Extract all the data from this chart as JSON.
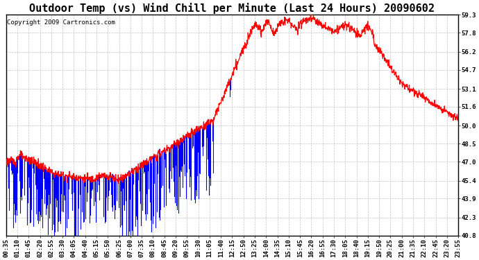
{
  "title": "Outdoor Temp (vs) Wind Chill per Minute (Last 24 Hours) 20090602",
  "copyright": "Copyright 2009 Cartronics.com",
  "y_min": 40.8,
  "y_max": 59.3,
  "y_ticks": [
    40.8,
    42.3,
    43.9,
    45.4,
    47.0,
    48.5,
    50.0,
    51.6,
    53.1,
    54.7,
    56.2,
    57.8,
    59.3
  ],
  "x_labels": [
    "00:35",
    "01:10",
    "01:45",
    "02:20",
    "02:55",
    "03:30",
    "04:05",
    "04:40",
    "05:15",
    "05:50",
    "06:25",
    "07:00",
    "07:35",
    "08:10",
    "08:45",
    "09:20",
    "09:55",
    "10:30",
    "11:05",
    "11:40",
    "12:15",
    "12:50",
    "13:25",
    "14:00",
    "14:35",
    "15:10",
    "15:45",
    "16:20",
    "16:55",
    "17:30",
    "18:05",
    "18:40",
    "19:15",
    "19:50",
    "20:25",
    "21:00",
    "21:35",
    "22:10",
    "22:45",
    "23:20",
    "23:55"
  ],
  "background_color": "#ffffff",
  "grid_color": "#bbbbbb",
  "line_color_red": "#ff0000",
  "line_color_blue": "#0000ff",
  "title_fontsize": 11,
  "tick_fontsize": 6.5,
  "copyright_fontsize": 6.5
}
